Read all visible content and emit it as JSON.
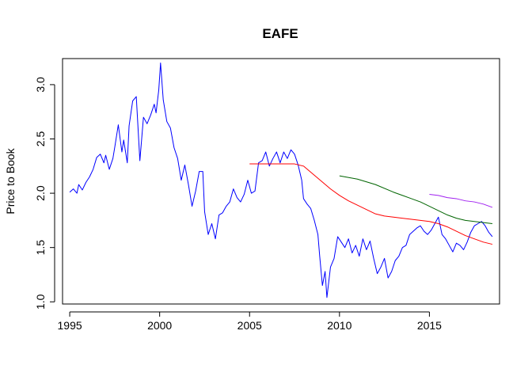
{
  "chart_data": {
    "type": "line",
    "title": "EAFE",
    "xlabel": "",
    "ylabel": "Price to Book",
    "xlim": [
      1994.6,
      2018.9
    ],
    "ylim": [
      0.98,
      3.24
    ],
    "xticks": [
      1995,
      2000,
      2005,
      2010,
      2015
    ],
    "yticks": [
      1.0,
      1.5,
      2.0,
      2.5,
      3.0
    ],
    "ytick_labels": [
      "1.0",
      "1.5",
      "2.0",
      "2.5",
      "3.0"
    ],
    "grid": false,
    "legend": "none",
    "series": [
      {
        "color": "#0000ff",
        "x": [
          1995.0,
          1995.2,
          1995.4,
          1995.5,
          1995.7,
          1995.9,
          1996.1,
          1996.3,
          1996.5,
          1996.7,
          1996.9,
          1997.0,
          1997.2,
          1997.4,
          1997.5,
          1997.7,
          1997.9,
          1998.0,
          1998.2,
          1998.3,
          1998.5,
          1998.7,
          1998.9,
          1999.1,
          1999.3,
          1999.5,
          1999.7,
          1999.8,
          1999.95,
          2000.05,
          2000.2,
          2000.4,
          2000.6,
          2000.8,
          2001.0,
          2001.2,
          2001.4,
          2001.6,
          2001.8,
          2002.0,
          2002.2,
          2002.4,
          2002.5,
          2002.7,
          2002.9,
          2003.1,
          2003.3,
          2003.5,
          2003.7,
          2003.9,
          2004.1,
          2004.3,
          2004.5,
          2004.7,
          2004.9,
          2005.1,
          2005.3,
          2005.5,
          2005.7,
          2005.9,
          2006.1,
          2006.3,
          2006.5,
          2006.7,
          2006.9,
          2007.1,
          2007.3,
          2007.5,
          2007.7,
          2007.9,
          2008.0,
          2008.2,
          2008.4,
          2008.6,
          2008.8,
          2008.9,
          2009.05,
          2009.2,
          2009.3,
          2009.5,
          2009.7,
          2009.9,
          2010.1,
          2010.3,
          2010.5,
          2010.7,
          2010.9,
          2011.1,
          2011.3,
          2011.5,
          2011.7,
          2011.9,
          2012.1,
          2012.3,
          2012.5,
          2012.7,
          2012.9,
          2013.1,
          2013.3,
          2013.5,
          2013.7,
          2013.9,
          2014.1,
          2014.3,
          2014.5,
          2014.7,
          2014.9,
          2015.1,
          2015.3,
          2015.5,
          2015.7,
          2015.9,
          2016.1,
          2016.3,
          2016.5,
          2016.7,
          2016.9,
          2017.1,
          2017.3,
          2017.5,
          2017.7,
          2017.9,
          2018.1,
          2018.3,
          2018.5
        ],
        "y": [
          2.01,
          2.04,
          2.0,
          2.08,
          2.03,
          2.1,
          2.15,
          2.22,
          2.33,
          2.36,
          2.28,
          2.35,
          2.22,
          2.32,
          2.42,
          2.63,
          2.38,
          2.49,
          2.28,
          2.62,
          2.85,
          2.89,
          2.3,
          2.7,
          2.64,
          2.72,
          2.82,
          2.74,
          2.95,
          3.2,
          2.86,
          2.66,
          2.6,
          2.42,
          2.32,
          2.12,
          2.26,
          2.08,
          1.88,
          2.02,
          2.2,
          2.2,
          1.83,
          1.62,
          1.72,
          1.58,
          1.8,
          1.82,
          1.88,
          1.92,
          2.04,
          1.96,
          1.92,
          1.99,
          2.12,
          2.0,
          2.02,
          2.28,
          2.3,
          2.38,
          2.25,
          2.32,
          2.38,
          2.28,
          2.38,
          2.32,
          2.4,
          2.36,
          2.26,
          2.12,
          1.95,
          1.9,
          1.86,
          1.75,
          1.62,
          1.42,
          1.15,
          1.28,
          1.04,
          1.32,
          1.4,
          1.6,
          1.55,
          1.5,
          1.58,
          1.45,
          1.52,
          1.42,
          1.58,
          1.48,
          1.56,
          1.4,
          1.26,
          1.32,
          1.4,
          1.22,
          1.28,
          1.38,
          1.42,
          1.5,
          1.52,
          1.62,
          1.65,
          1.68,
          1.7,
          1.65,
          1.62,
          1.66,
          1.72,
          1.78,
          1.62,
          1.58,
          1.52,
          1.46,
          1.54,
          1.52,
          1.48,
          1.55,
          1.64,
          1.7,
          1.72,
          1.74,
          1.7,
          1.64,
          1.6
        ]
      },
      {
        "color": "#ff0000",
        "x": [
          2005.0,
          2006.0,
          2007.0,
          2007.5,
          2008.0,
          2008.5,
          2009.0,
          2009.5,
          2010.0,
          2010.5,
          2011.0,
          2011.5,
          2012.0,
          2012.5,
          2013.0,
          2014.0,
          2015.0,
          2015.5,
          2016.0,
          2016.5,
          2017.0,
          2017.5,
          2018.0,
          2018.5
        ],
        "y": [
          2.27,
          2.27,
          2.27,
          2.27,
          2.25,
          2.18,
          2.11,
          2.04,
          1.98,
          1.93,
          1.89,
          1.85,
          1.81,
          1.79,
          1.78,
          1.76,
          1.74,
          1.72,
          1.69,
          1.65,
          1.61,
          1.58,
          1.55,
          1.53
        ]
      },
      {
        "color": "#006400",
        "x": [
          2010.0,
          2011.0,
          2012.0,
          2013.0,
          2014.0,
          2014.5,
          2015.0,
          2015.5,
          2016.0,
          2016.5,
          2017.0,
          2017.5,
          2018.0,
          2018.5
        ],
        "y": [
          2.16,
          2.13,
          2.08,
          2.01,
          1.95,
          1.92,
          1.88,
          1.84,
          1.8,
          1.77,
          1.75,
          1.74,
          1.73,
          1.72
        ]
      },
      {
        "color": "#a020f0",
        "x": [
          2015.0,
          2015.5,
          2016.0,
          2016.5,
          2017.0,
          2017.5,
          2018.0,
          2018.5
        ],
        "y": [
          1.99,
          1.98,
          1.96,
          1.95,
          1.93,
          1.92,
          1.9,
          1.87
        ]
      }
    ]
  }
}
